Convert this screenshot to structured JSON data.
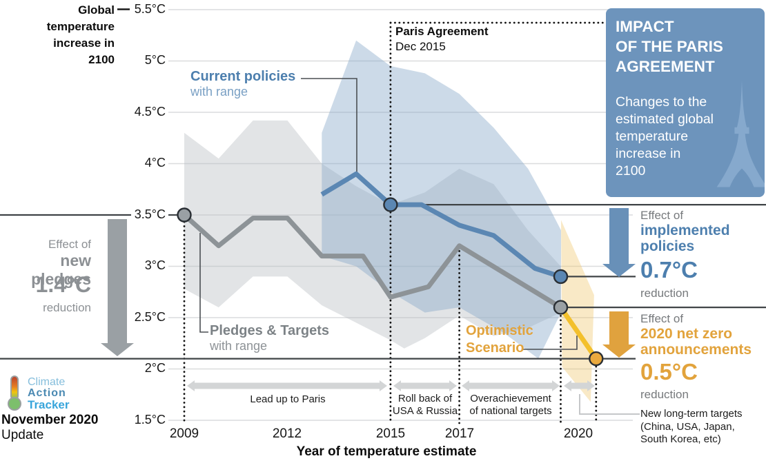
{
  "colors": {
    "blue_line": "#5b87b3",
    "blue_text": "#4d7fae",
    "blue_subtle": "#7aa0c4",
    "gray_line": "#8d9397",
    "gray_text": "#8c9094",
    "gray_dark_text": "#76797c",
    "orange_text": "#e2a33c",
    "yellow_line": "#f3c02c",
    "orange_dot": "#eaa93e",
    "panel_blue": "#6d94bc",
    "eiffel": "#8badd0",
    "grid": "#dadcdd",
    "ref_line": "#3f4346",
    "dotted": "#141414",
    "timeline_arrow": "#d3d5d6",
    "gray_arrow": "#9aa0a4",
    "blue_arrow": "#6890b8",
    "orange_arrow": "#e0a23e",
    "connector": "#4a4e52",
    "note_connector": "#c5c7c9",
    "logo_light_blue": "#85bedc",
    "logo_mid_blue": "#4a89b2",
    "logo_bright_blue": "#38a5db"
  },
  "axis_header": {
    "lines": [
      "Global",
      "temperature",
      "increase in",
      "2100"
    ]
  },
  "paris_annotation": {
    "title": "Paris Agreement",
    "date": "Dec 2015"
  },
  "labels": {
    "current_policies": {
      "title": "Current policies",
      "subtitle": "with range"
    },
    "pledges": {
      "title": "Pledges & Targets",
      "subtitle": "with range"
    },
    "optimistic": {
      "line1": "Optimistic",
      "line2": "Scenario"
    }
  },
  "left_effect": {
    "prefix": "Effect of",
    "name": "new pledges",
    "value": "1.4°C",
    "suffix": "reduction"
  },
  "right_effects": {
    "policies": {
      "prefix": "Effect of",
      "name_line1": "implemented",
      "name_line2": "policies",
      "value": "0.7°C",
      "suffix": "reduction"
    },
    "netzero": {
      "prefix": "Effect of",
      "name_line1": "2020 net zero",
      "name_line2": "announcements",
      "value": "0.5°C",
      "suffix": "reduction"
    },
    "note_lines": [
      "New long-term targets",
      "(China, USA, Japan,",
      "South Korea, etc)"
    ]
  },
  "panel": {
    "title_lines": [
      "IMPACT",
      "OF THE PARIS",
      "AGREEMENT"
    ],
    "body_lines": [
      "Changes to the",
      "estimated global",
      "temperature",
      "increase in",
      "2100"
    ]
  },
  "timeline": {
    "segments": [
      {
        "lines": [
          "Lead up to Paris"
        ]
      },
      {
        "lines": [
          "Roll back of",
          "USA & Russia"
        ]
      },
      {
        "lines": [
          "Overachievement",
          "of national targets"
        ]
      },
      {
        "lines": []
      }
    ]
  },
  "logo": {
    "line1": "Climate",
    "line2": "Action",
    "line3": "Tracker"
  },
  "footer": {
    "title": "November 2020",
    "subtitle": "Update"
  },
  "chart_data": {
    "type": "line",
    "title": "Impact of the Paris Agreement",
    "ylabel": "Global temperature increase in 2100",
    "xlabel": "Year of temperature estimate",
    "x_range": [
      2009,
      2021.3
    ],
    "y_range": [
      1.5,
      5.5
    ],
    "grid": true,
    "x_ticks": [
      2009,
      2012,
      2015,
      2017,
      2020
    ],
    "x_tick_labels": [
      "2009",
      "2012",
      "2015",
      "2017",
      "2020"
    ],
    "y_ticks": [
      5.5,
      5,
      4.5,
      4,
      3.5,
      3,
      2.5,
      2,
      1.5
    ],
    "y_tick_labels": [
      "5.5°C",
      "5°C",
      "4.5°C",
      "4°C",
      "3.5°C",
      "3°C",
      "2.5°C",
      "2°C",
      "1.5°C"
    ],
    "series": [
      {
        "id": "pledges-targets",
        "name": "Pledges & Targets",
        "color": "#8d9397",
        "marker_color": "#9aa0a4",
        "points": [
          [
            2009,
            3.5
          ],
          [
            2010,
            3.2
          ],
          [
            2011,
            3.47
          ],
          [
            2012,
            3.47
          ],
          [
            2013,
            3.1
          ],
          [
            2014.2,
            3.1
          ],
          [
            2015,
            2.7
          ],
          [
            2016.1,
            2.8
          ],
          [
            2017,
            3.2
          ],
          [
            2019.95,
            2.6
          ]
        ],
        "markers": [
          [
            2009,
            3.5
          ],
          [
            2019.95,
            2.6
          ]
        ]
      },
      {
        "id": "current-policies",
        "name": "Current policies",
        "color": "#5b87b3",
        "marker_color": "#5b87b3",
        "points": [
          [
            2013,
            3.7
          ],
          [
            2014,
            3.9
          ],
          [
            2015,
            3.6
          ],
          [
            2015.9,
            3.6
          ],
          [
            2017,
            3.4
          ],
          [
            2018,
            3.3
          ],
          [
            2019.2,
            2.98
          ],
          [
            2019.95,
            2.9
          ]
        ],
        "markers": [
          [
            2015,
            3.6
          ],
          [
            2019.95,
            2.9
          ]
        ]
      },
      {
        "id": "optimistic-scenario",
        "name": "Optimistic Scenario",
        "color": "#f3c02c",
        "marker_color": "#eaa93e",
        "points": [
          [
            2019.95,
            2.6
          ],
          [
            2020.98,
            2.1
          ]
        ],
        "markers": [
          [
            2020.98,
            2.1
          ]
        ]
      }
    ],
    "bands": [
      {
        "name": "pledges-range",
        "color": "#b9bfc4",
        "opacity": 0.42,
        "upper": [
          [
            2009,
            4.3
          ],
          [
            2010,
            4.05
          ],
          [
            2011,
            4.42
          ],
          [
            2012,
            4.42
          ],
          [
            2013,
            4.0
          ],
          [
            2014,
            3.78
          ],
          [
            2015,
            3.6
          ],
          [
            2016,
            3.72
          ],
          [
            2017,
            3.95
          ],
          [
            2018,
            3.8
          ],
          [
            2019,
            3.35
          ],
          [
            2019.95,
            3.0
          ]
        ],
        "lower": [
          [
            2019.95,
            2.55
          ],
          [
            2019,
            2.4
          ],
          [
            2018,
            2.32
          ],
          [
            2017,
            2.52
          ],
          [
            2016,
            2.3
          ],
          [
            2015.4,
            2.2
          ],
          [
            2015,
            2.28
          ],
          [
            2014,
            2.45
          ],
          [
            2013,
            2.62
          ],
          [
            2012,
            2.9
          ],
          [
            2011,
            2.9
          ],
          [
            2010,
            2.6
          ],
          [
            2009,
            2.78
          ]
        ]
      },
      {
        "name": "current-policies-range",
        "color": "#86a7c8",
        "opacity": 0.42,
        "upper": [
          [
            2013,
            4.3
          ],
          [
            2014,
            5.2
          ],
          [
            2015,
            4.95
          ],
          [
            2016,
            4.88
          ],
          [
            2017,
            4.68
          ],
          [
            2018,
            4.35
          ],
          [
            2019,
            3.95
          ],
          [
            2019.5,
            3.65
          ],
          [
            2019.96,
            3.35
          ]
        ],
        "lower": [
          [
            2019.96,
            2.55
          ],
          [
            2019.3,
            2.1
          ],
          [
            2018.3,
            2.35
          ],
          [
            2017,
            2.6
          ],
          [
            2016,
            2.55
          ],
          [
            2015,
            2.75
          ],
          [
            2014,
            3.0
          ],
          [
            2013,
            3.1
          ]
        ]
      },
      {
        "name": "optimistic-range",
        "color": "#f0c46a",
        "opacity": 0.38,
        "polygon": [
          [
            2019.96,
            3.45
          ],
          [
            2020.92,
            2.72
          ],
          [
            2020.82,
            1.68
          ],
          [
            2019.99,
            2.02
          ]
        ]
      }
    ],
    "key_levels": {
      "pledges_2009": 3.5,
      "before_paris": 3.6,
      "current_policies_2020": 2.9,
      "pledges_2020": 2.6,
      "optimistic_2021": 2.1
    },
    "event_years": [
      2009,
      2015,
      2017,
      2019.95,
      2020.98
    ],
    "events": {
      "paris_agreement": "Dec 2015"
    }
  }
}
